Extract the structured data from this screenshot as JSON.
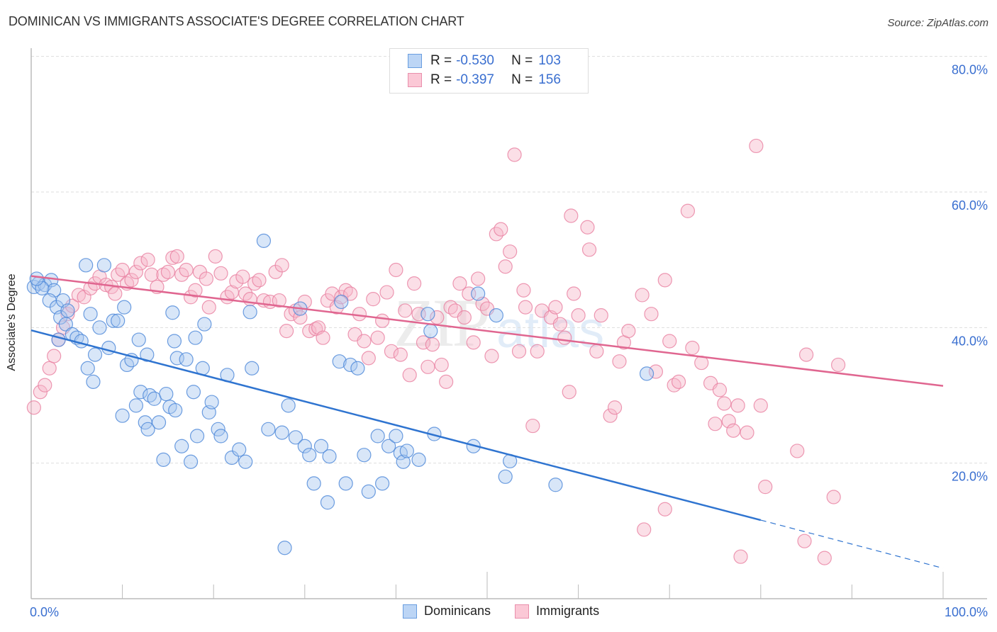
{
  "header": {
    "title": "DOMINICAN VS IMMIGRANTS ASSOCIATE'S DEGREE CORRELATION CHART",
    "source": "Source: ZipAtlas.com"
  },
  "watermark": {
    "zip": "ZIP",
    "atlas": "atlas"
  },
  "legend": {
    "rows": [
      {
        "r_label": "R =",
        "r_value": "-0.530",
        "n_label": "N =",
        "n_value": "103"
      },
      {
        "r_label": "R =",
        "r_value": "-0.397",
        "n_label": "N =",
        "n_value": "156"
      }
    ]
  },
  "bottom_legend": [
    "Dominicans",
    "Immigrants"
  ],
  "colors": {
    "dominicans_fill": "#a9c8f0",
    "dominicans_stroke": "#4a86d8",
    "dominicans_line": "#2f74d0",
    "immigrants_fill": "#f7b8ca",
    "immigrants_stroke": "#e87fa0",
    "immigrants_line": "#e06690",
    "tick_text": "#3a6fd0"
  },
  "chart_data": {
    "type": "scatter",
    "title": "DOMINICAN VS IMMIGRANTS ASSOCIATE'S DEGREE CORRELATION CHART",
    "xlabel": "",
    "ylabel": "Associate's Degree",
    "xlim": [
      0,
      100
    ],
    "ylim": [
      0,
      82
    ],
    "x_tick_labels": [
      "0.0%",
      "100.0%"
    ],
    "y_ticks": [
      20,
      40,
      60,
      80
    ],
    "y_tick_labels": [
      "20.0%",
      "40.0%",
      "60.0%",
      "80.0%"
    ],
    "grid": true,
    "legend_position": "top-center",
    "series": [
      {
        "name": "Dominicans",
        "R": -0.53,
        "N": 103,
        "trend": {
          "x0": 0,
          "y0": 39.6,
          "x1": 80,
          "y1": 11.6,
          "dashed_to_x": 100,
          "dashed_to_y": 4.5
        },
        "points": [
          [
            0.3,
            46.0
          ],
          [
            0.8,
            46.5
          ],
          [
            1.5,
            46.3
          ],
          [
            2.2,
            47.0
          ],
          [
            2.5,
            45.5
          ],
          [
            2.0,
            44.0
          ],
          [
            2.8,
            43.0
          ],
          [
            3.5,
            44.0
          ],
          [
            3.2,
            41.5
          ],
          [
            4.0,
            42.5
          ],
          [
            3.8,
            40.5
          ],
          [
            4.5,
            39.0
          ],
          [
            5.0,
            38.5
          ],
          [
            5.5,
            38.0
          ],
          [
            6.5,
            42.0
          ],
          [
            6.2,
            34.0
          ],
          [
            7.0,
            36.0
          ],
          [
            6.8,
            32.0
          ],
          [
            7.5,
            40.0
          ],
          [
            8.5,
            37.0
          ],
          [
            6.0,
            49.2
          ],
          [
            8.0,
            49.2
          ],
          [
            9.0,
            41.0
          ],
          [
            9.5,
            41.0
          ],
          [
            10.2,
            43.0
          ],
          [
            10.5,
            34.5
          ],
          [
            11.0,
            35.2
          ],
          [
            10.0,
            27.0
          ],
          [
            11.5,
            28.5
          ],
          [
            12.0,
            30.5
          ],
          [
            12.5,
            26.0
          ],
          [
            12.8,
            25.0
          ],
          [
            13.0,
            30.0
          ],
          [
            13.5,
            29.5
          ],
          [
            14.0,
            26.0
          ],
          [
            14.5,
            20.5
          ],
          [
            14.8,
            30.2
          ],
          [
            15.2,
            28.3
          ],
          [
            15.8,
            27.8
          ],
          [
            11.8,
            38.2
          ],
          [
            12.7,
            36.0
          ],
          [
            15.5,
            42.2
          ],
          [
            15.7,
            38.0
          ],
          [
            16.0,
            35.5
          ],
          [
            17.0,
            35.3
          ],
          [
            16.5,
            22.5
          ],
          [
            17.5,
            20.2
          ],
          [
            17.8,
            30.5
          ],
          [
            18.2,
            24.0
          ],
          [
            18.0,
            38.5
          ],
          [
            18.8,
            34.0
          ],
          [
            19.5,
            27.5
          ],
          [
            19.8,
            29.0
          ],
          [
            20.5,
            25.0
          ],
          [
            20.8,
            24.0
          ],
          [
            21.5,
            33.0
          ],
          [
            22.0,
            20.8
          ],
          [
            22.8,
            22.0
          ],
          [
            23.5,
            20.2
          ],
          [
            24.0,
            42.3
          ],
          [
            24.2,
            34.0
          ],
          [
            25.5,
            52.8
          ],
          [
            26.0,
            25.0
          ],
          [
            27.5,
            24.5
          ],
          [
            28.2,
            28.5
          ],
          [
            29.0,
            23.8
          ],
          [
            30.0,
            22.5
          ],
          [
            31.0,
            17.0
          ],
          [
            30.5,
            21.2
          ],
          [
            31.8,
            22.5
          ],
          [
            32.5,
            14.2
          ],
          [
            32.7,
            21.0
          ],
          [
            33.8,
            35.0
          ],
          [
            34.5,
            17.0
          ],
          [
            35.0,
            34.5
          ],
          [
            35.8,
            34.0
          ],
          [
            36.5,
            21.2
          ],
          [
            37.0,
            15.8
          ],
          [
            38.0,
            24.0
          ],
          [
            38.5,
            17.0
          ],
          [
            39.2,
            22.5
          ],
          [
            40.0,
            24.0
          ],
          [
            40.5,
            21.5
          ],
          [
            40.8,
            20.2
          ],
          [
            41.2,
            21.8
          ],
          [
            42.5,
            20.5
          ],
          [
            43.5,
            42.0
          ],
          [
            43.8,
            39.5
          ],
          [
            44.2,
            24.3
          ],
          [
            27.8,
            7.5
          ],
          [
            19.0,
            40.5
          ],
          [
            29.5,
            42.8
          ],
          [
            34.0,
            43.8
          ],
          [
            48.5,
            22.5
          ],
          [
            49.0,
            45.0
          ],
          [
            51.0,
            41.8
          ],
          [
            52.0,
            18.0
          ],
          [
            52.5,
            20.3
          ],
          [
            57.5,
            16.8
          ],
          [
            67.5,
            33.2
          ],
          [
            1.2,
            45.8
          ],
          [
            0.6,
            47.2
          ],
          [
            3.0,
            38.2
          ]
        ]
      },
      {
        "name": "Immigrants",
        "R": -0.397,
        "N": 156,
        "trend": {
          "x0": 0,
          "y0": 47.6,
          "x1": 100,
          "y1": 31.4
        },
        "points": [
          [
            0.3,
            28.2
          ],
          [
            1.0,
            30.5
          ],
          [
            1.5,
            31.5
          ],
          [
            2.0,
            34.0
          ],
          [
            2.5,
            35.8
          ],
          [
            3.0,
            38.2
          ],
          [
            3.5,
            40.0
          ],
          [
            4.0,
            42.0
          ],
          [
            4.5,
            43.2
          ],
          [
            5.2,
            44.8
          ],
          [
            5.8,
            44.5
          ],
          [
            6.5,
            45.8
          ],
          [
            7.0,
            46.5
          ],
          [
            7.5,
            47.5
          ],
          [
            8.2,
            46.3
          ],
          [
            8.8,
            46.0
          ],
          [
            9.2,
            45.0
          ],
          [
            9.5,
            47.8
          ],
          [
            10.0,
            48.5
          ],
          [
            10.5,
            46.5
          ],
          [
            11.0,
            47.0
          ],
          [
            11.5,
            48.2
          ],
          [
            12.0,
            49.5
          ],
          [
            12.8,
            50.0
          ],
          [
            13.2,
            47.8
          ],
          [
            13.8,
            46.0
          ],
          [
            14.5,
            47.8
          ],
          [
            15.0,
            48.2
          ],
          [
            15.5,
            50.3
          ],
          [
            16.0,
            50.5
          ],
          [
            16.5,
            47.8
          ],
          [
            17.0,
            48.5
          ],
          [
            17.5,
            44.5
          ],
          [
            18.0,
            45.5
          ],
          [
            18.5,
            48.2
          ],
          [
            19.2,
            47.2
          ],
          [
            19.5,
            43.0
          ],
          [
            20.2,
            50.5
          ],
          [
            20.8,
            48.0
          ],
          [
            21.5,
            44.5
          ],
          [
            22.0,
            45.2
          ],
          [
            22.5,
            46.8
          ],
          [
            23.2,
            47.5
          ],
          [
            23.5,
            45.0
          ],
          [
            24.0,
            44.2
          ],
          [
            24.5,
            46.5
          ],
          [
            25.0,
            47.0
          ],
          [
            25.5,
            44.0
          ],
          [
            26.2,
            43.8
          ],
          [
            26.8,
            48.2
          ],
          [
            27.2,
            44.0
          ],
          [
            27.5,
            49.2
          ],
          [
            28.0,
            39.5
          ],
          [
            28.5,
            42.0
          ],
          [
            29.0,
            42.5
          ],
          [
            29.5,
            41.5
          ],
          [
            30.0,
            43.8
          ],
          [
            30.5,
            39.5
          ],
          [
            31.2,
            39.8
          ],
          [
            31.5,
            40.0
          ],
          [
            32.0,
            38.5
          ],
          [
            32.5,
            44.0
          ],
          [
            33.0,
            45.0
          ],
          [
            33.5,
            43.0
          ],
          [
            34.0,
            44.5
          ],
          [
            34.5,
            45.5
          ],
          [
            35.0,
            45.0
          ],
          [
            35.5,
            39.0
          ],
          [
            36.0,
            42.0
          ],
          [
            36.5,
            38.0
          ],
          [
            37.0,
            35.5
          ],
          [
            37.5,
            44.2
          ],
          [
            38.0,
            38.5
          ],
          [
            38.5,
            41.0
          ],
          [
            39.0,
            45.2
          ],
          [
            39.5,
            36.5
          ],
          [
            40.0,
            48.5
          ],
          [
            40.5,
            36.0
          ],
          [
            41.0,
            42.5
          ],
          [
            41.5,
            33.0
          ],
          [
            42.0,
            46.5
          ],
          [
            42.5,
            42.0
          ],
          [
            43.0,
            37.8
          ],
          [
            43.5,
            34.2
          ],
          [
            44.0,
            37.5
          ],
          [
            44.5,
            41.5
          ],
          [
            45.0,
            34.5
          ],
          [
            45.5,
            32.0
          ],
          [
            46.0,
            43.0
          ],
          [
            46.5,
            42.5
          ],
          [
            47.0,
            46.5
          ],
          [
            47.5,
            41.5
          ],
          [
            48.0,
            45.0
          ],
          [
            48.5,
            37.8
          ],
          [
            49.0,
            47.2
          ],
          [
            49.5,
            43.5
          ],
          [
            50.0,
            42.8
          ],
          [
            50.5,
            35.8
          ],
          [
            51.0,
            53.8
          ],
          [
            51.5,
            54.5
          ],
          [
            52.0,
            49.0
          ],
          [
            52.5,
            51.2
          ],
          [
            53.0,
            65.5
          ],
          [
            53.5,
            36.5
          ],
          [
            54.0,
            45.5
          ],
          [
            54.2,
            43.0
          ],
          [
            55.0,
            25.5
          ],
          [
            55.5,
            36.5
          ],
          [
            56.0,
            42.5
          ],
          [
            57.0,
            41.5
          ],
          [
            57.5,
            43.0
          ],
          [
            58.0,
            40.5
          ],
          [
            58.5,
            38.5
          ],
          [
            59.0,
            30.5
          ],
          [
            59.2,
            56.5
          ],
          [
            59.5,
            45.0
          ],
          [
            60.0,
            41.8
          ],
          [
            61.0,
            54.8
          ],
          [
            61.2,
            51.5
          ],
          [
            62.0,
            36.5
          ],
          [
            62.5,
            41.8
          ],
          [
            63.5,
            27.0
          ],
          [
            64.0,
            28.2
          ],
          [
            64.5,
            35.0
          ],
          [
            65.0,
            37.8
          ],
          [
            65.5,
            39.5
          ],
          [
            67.0,
            44.8
          ],
          [
            68.0,
            42.0
          ],
          [
            68.5,
            33.5
          ],
          [
            69.5,
            47.0
          ],
          [
            70.0,
            38.0
          ],
          [
            70.5,
            31.5
          ],
          [
            71.0,
            32.0
          ],
          [
            72.0,
            57.2
          ],
          [
            72.5,
            37.0
          ],
          [
            73.5,
            34.8
          ],
          [
            74.5,
            31.8
          ],
          [
            75.0,
            25.8
          ],
          [
            75.5,
            30.8
          ],
          [
            76.0,
            28.8
          ],
          [
            76.5,
            26.2
          ],
          [
            77.0,
            24.8
          ],
          [
            77.5,
            28.5
          ],
          [
            78.5,
            24.5
          ],
          [
            79.5,
            66.8
          ],
          [
            80.0,
            28.5
          ],
          [
            84.0,
            21.8
          ],
          [
            85.0,
            36.0
          ],
          [
            88.0,
            15.0
          ],
          [
            88.5,
            34.5
          ],
          [
            84.8,
            8.5
          ],
          [
            87.0,
            6.0
          ],
          [
            80.5,
            16.5
          ],
          [
            77.8,
            6.2
          ],
          [
            69.5,
            13.2
          ],
          [
            67.2,
            10.2
          ]
        ]
      }
    ]
  }
}
